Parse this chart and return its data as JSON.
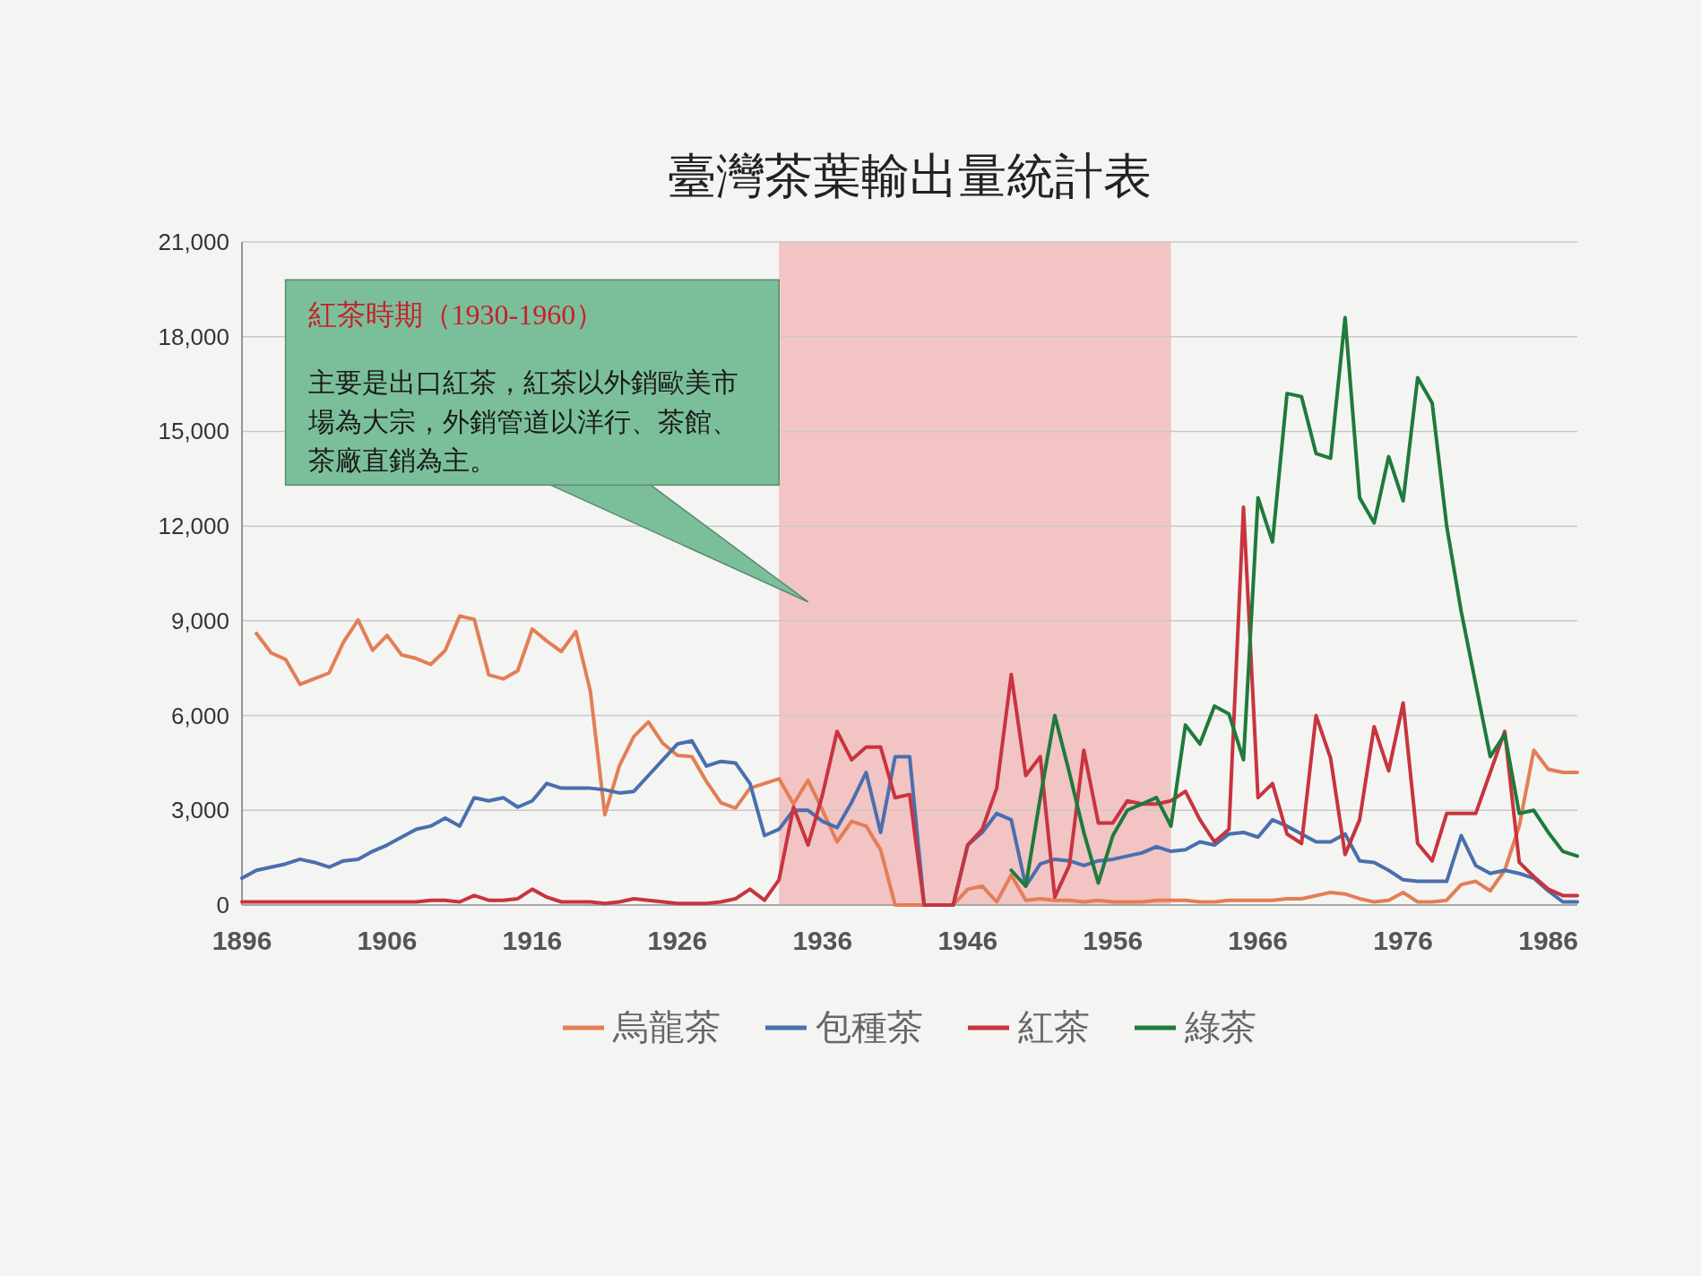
{
  "chart_data": {
    "type": "line",
    "title": "臺灣茶葉輸出量統計表",
    "annotations": [
      "紅茶時期（1930-1960）",
      "主要是出口紅茶，紅茶以外銷歐美市場為大宗，外銷管道以洋行、茶館、茶廠直銷為主。"
    ],
    "x": [
      1896,
      1897,
      1898,
      1899,
      1900,
      1901,
      1902,
      1903,
      1904,
      1905,
      1906,
      1907,
      1908,
      1909,
      1910,
      1911,
      1912,
      1913,
      1914,
      1915,
      1916,
      1917,
      1918,
      1919,
      1920,
      1921,
      1922,
      1923,
      1924,
      1925,
      1926,
      1927,
      1928,
      1929,
      1930,
      1931,
      1932,
      1933,
      1934,
      1935,
      1936,
      1937,
      1938,
      1939,
      1940,
      1941,
      1942,
      1943,
      1944,
      1945,
      1946,
      1947,
      1948,
      1949,
      1950,
      1951,
      1952,
      1953,
      1954,
      1955,
      1956,
      1957,
      1958,
      1959,
      1960,
      1961,
      1962,
      1963,
      1964,
      1965,
      1966,
      1967,
      1968,
      1969,
      1970,
      1971,
      1972,
      1973,
      1974,
      1975,
      1976,
      1977,
      1978,
      1979,
      1980,
      1981,
      1982,
      1983,
      1984,
      1985,
      1986,
      1987,
      1988
    ],
    "xlim": [
      1896,
      1988
    ],
    "xticks": [
      1896,
      1906,
      1916,
      1926,
      1936,
      1946,
      1956,
      1966,
      1976,
      1986
    ],
    "ylim": [
      0,
      21000
    ],
    "yticks": [
      0,
      {
        "value": 3000,
        "label": "3,000"
      },
      {
        "value": 6000,
        "label": "6,000"
      },
      {
        "value": 9000,
        "label": "9,000"
      },
      {
        "value": 12000,
        "label": "12,000"
      },
      {
        "value": 15000,
        "label": "15,000"
      },
      {
        "value": 18000,
        "label": "18,000"
      },
      {
        "value": 21000,
        "label": "21,000"
      }
    ],
    "grid": "y",
    "legend": "bottom",
    "bands": [
      {
        "axis": "x",
        "from": 1933,
        "to": 1960,
        "color": "#f2c4c4"
      }
    ],
    "series": [
      {
        "name": "烏龍茶",
        "color": "#e37e56",
        "values": [
          null,
          8600,
          7990,
          7780,
          6990,
          7170,
          7350,
          8330,
          9030,
          8070,
          8540,
          7920,
          7810,
          7620,
          8060,
          9150,
          9050,
          7290,
          7160,
          7420,
          8740,
          8360,
          8030,
          8660,
          6780,
          2860,
          4410,
          5340,
          5800,
          5120,
          4740,
          4700,
          3910,
          3240,
          3070,
          3700,
          3850,
          4000,
          3200,
          3950,
          3000,
          2000,
          2650,
          2500,
          1750,
          0,
          0,
          0,
          0,
          0,
          500,
          600,
          100,
          950,
          150,
          200,
          150,
          150,
          100,
          150,
          100,
          100,
          100,
          150,
          150,
          150,
          100,
          100,
          150,
          150,
          150,
          150,
          200,
          200,
          300,
          400,
          350,
          200,
          100,
          150,
          400,
          100,
          100,
          150,
          650,
          750,
          450,
          1100,
          2500,
          4900,
          4300,
          4200,
          4200
        ]
      },
      {
        "name": "包種茶",
        "color": "#4a6fae",
        "values": [
          850,
          1100,
          1200,
          1300,
          1450,
          1350,
          1200,
          1400,
          1450,
          1700,
          1900,
          2150,
          2400,
          2500,
          2750,
          2500,
          3400,
          3300,
          3400,
          3100,
          3300,
          3850,
          3700,
          3700,
          3700,
          3650,
          3550,
          3600,
          4100,
          4600,
          5100,
          5200,
          4400,
          4550,
          4500,
          3850,
          2200,
          2400,
          3000,
          3000,
          2650,
          2450,
          3250,
          4200,
          2300,
          4700,
          4700,
          0,
          0,
          0,
          1900,
          2300,
          2900,
          2700,
          600,
          1300,
          1450,
          1400,
          1250,
          1400,
          1450,
          1550,
          1650,
          1850,
          1700,
          1750,
          2000,
          1900,
          2250,
          2300,
          2150,
          2700,
          2500,
          2250,
          2000,
          2000,
          2250,
          1400,
          1350,
          1100,
          800,
          750,
          750,
          750,
          2200,
          1250,
          1000,
          1100,
          1000,
          850,
          450,
          100,
          100
        ]
      },
      {
        "name": "紅茶",
        "color": "#c8343f",
        "values": [
          100,
          100,
          100,
          100,
          100,
          100,
          100,
          100,
          100,
          100,
          100,
          100,
          100,
          150,
          150,
          100,
          300,
          150,
          150,
          200,
          500,
          250,
          100,
          100,
          100,
          50,
          100,
          200,
          150,
          100,
          50,
          50,
          50,
          100,
          200,
          500,
          150,
          800,
          3100,
          1900,
          3500,
          5500,
          4600,
          5000,
          5000,
          3400,
          3500,
          0,
          0,
          0,
          1900,
          2400,
          3700,
          7300,
          4100,
          4700,
          250,
          1250,
          4900,
          2600,
          2600,
          3300,
          3200,
          3200,
          3300,
          3600,
          2700,
          2000,
          2400,
          12600,
          3400,
          3850,
          2250,
          1950,
          6000,
          4650,
          1600,
          2700,
          5650,
          4250,
          6400,
          1950,
          1400,
          2900,
          2900,
          2900,
          4200,
          5500,
          1350,
          900,
          500,
          300,
          300
        ]
      },
      {
        "name": "綠茶",
        "color": "#1f7a3c",
        "values": [
          null,
          null,
          null,
          null,
          null,
          null,
          null,
          null,
          null,
          null,
          null,
          null,
          null,
          null,
          null,
          null,
          null,
          null,
          null,
          null,
          null,
          null,
          null,
          null,
          null,
          null,
          null,
          null,
          null,
          null,
          null,
          null,
          null,
          null,
          null,
          null,
          null,
          null,
          null,
          null,
          null,
          null,
          null,
          null,
          null,
          null,
          null,
          null,
          null,
          null,
          null,
          null,
          null,
          1100,
          600,
          3400,
          6000,
          4200,
          2300,
          700,
          2200,
          3000,
          3200,
          3400,
          2500,
          5700,
          5100,
          6300,
          6050,
          4600,
          12900,
          11500,
          16200,
          16100,
          14300,
          14150,
          18600,
          12900,
          12100,
          14200,
          12800,
          16700,
          15900,
          12000,
          9300,
          7000,
          4700,
          5400,
          2900,
          3000,
          2300,
          1700,
          1550
        ]
      }
    ]
  }
}
